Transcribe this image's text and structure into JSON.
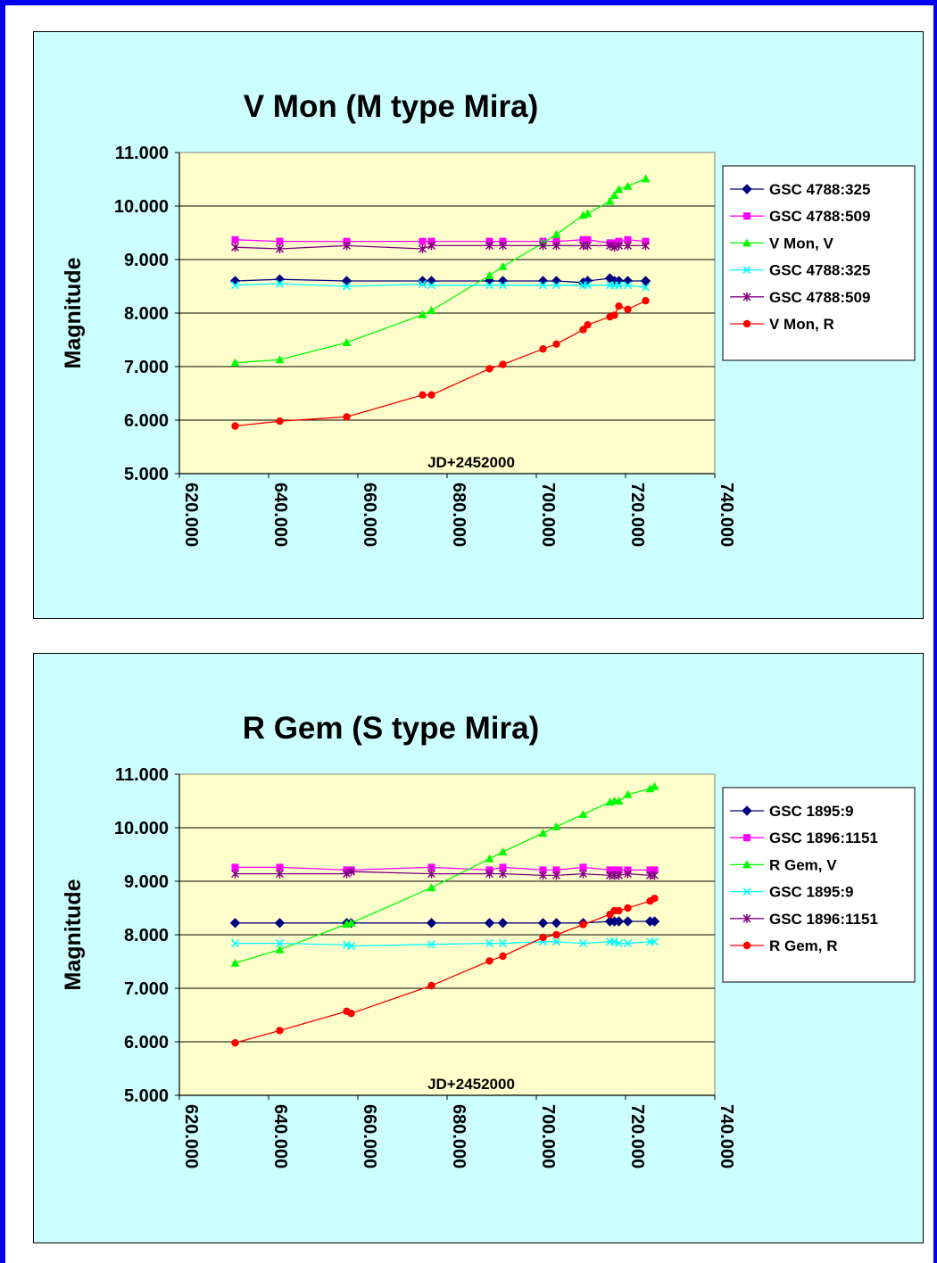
{
  "chart_data": [
    {
      "type": "line",
      "title": "V Mon (M type Mira)",
      "xlabel": "JD+2452000",
      "ylabel": "Magnitude",
      "xlim": [
        620,
        740
      ],
      "ylim": [
        5,
        11
      ],
      "x_ticks": [
        "620.000",
        "640.000",
        "660.000",
        "680.000",
        "700.000",
        "720.000",
        "740.000"
      ],
      "y_ticks": [
        "11.000",
        "10.000",
        "9.000",
        "8.000",
        "7.000",
        "6.000",
        "5.000"
      ],
      "grid": "horizontal",
      "legend": "right",
      "series": [
        {
          "name": "GSC 4788:325",
          "color": "#000080",
          "marker": "diamond",
          "x": [
            632.5,
            642.5,
            657.5,
            674.5,
            676.5,
            689.5,
            692.5,
            701.5,
            704.5,
            710.5,
            711.5,
            716.5,
            717.5,
            718.5,
            720.5,
            724.5
          ],
          "y": [
            8.6,
            8.63,
            8.6,
            8.6,
            8.6,
            8.6,
            8.6,
            8.6,
            8.6,
            8.57,
            8.6,
            8.65,
            8.6,
            8.6,
            8.6,
            8.6
          ]
        },
        {
          "name": "GSC 4788:509",
          "color": "#ff00ff",
          "marker": "square",
          "x": [
            632.5,
            642.5,
            657.5,
            674.5,
            676.5,
            689.5,
            692.5,
            701.5,
            704.5,
            710.5,
            711.5,
            716.5,
            717.5,
            718.5,
            720.5,
            724.5
          ],
          "y": [
            9.37,
            9.34,
            9.34,
            9.34,
            9.34,
            9.34,
            9.34,
            9.34,
            9.34,
            9.37,
            9.37,
            9.31,
            9.31,
            9.34,
            9.37,
            9.34
          ]
        },
        {
          "name": "V Mon, V",
          "color": "#00ff00",
          "marker": "triangle",
          "x": [
            632.5,
            642.5,
            657.5,
            674.5,
            676.5,
            689.5,
            692.5,
            701.5,
            704.5,
            710.5,
            711.5,
            716.5,
            717.5,
            718.5,
            720.5,
            724.5
          ],
          "y": [
            7.07,
            7.13,
            7.45,
            7.97,
            8.05,
            8.7,
            8.87,
            9.31,
            9.47,
            9.83,
            9.86,
            10.09,
            10.2,
            10.31,
            10.37,
            10.51
          ]
        },
        {
          "name": "GSC 4788:325",
          "color": "#00ffff",
          "marker": "x",
          "x": [
            632.5,
            642.5,
            657.5,
            674.5,
            676.5,
            689.5,
            692.5,
            701.5,
            704.5,
            710.5,
            711.5,
            716.5,
            717.5,
            718.5,
            720.5,
            724.5
          ],
          "y": [
            8.52,
            8.55,
            8.5,
            8.54,
            8.52,
            8.52,
            8.52,
            8.52,
            8.52,
            8.52,
            8.52,
            8.52,
            8.52,
            8.52,
            8.52,
            8.48
          ]
        },
        {
          "name": "GSC 4788:509",
          "color": "#800080",
          "marker": "star",
          "x": [
            632.5,
            642.5,
            657.5,
            674.5,
            676.5,
            689.5,
            692.5,
            701.5,
            704.5,
            710.5,
            711.5,
            716.5,
            717.5,
            718.5,
            720.5,
            724.5
          ],
          "y": [
            9.23,
            9.2,
            9.26,
            9.2,
            9.26,
            9.26,
            9.26,
            9.26,
            9.26,
            9.26,
            9.26,
            9.26,
            9.23,
            9.26,
            9.26,
            9.26
          ]
        },
        {
          "name": "V Mon, R",
          "color": "#ff0000",
          "marker": "circle",
          "x": [
            632.5,
            642.5,
            657.5,
            674.5,
            676.5,
            689.5,
            692.5,
            701.5,
            704.5,
            710.5,
            711.5,
            716.5,
            717.5,
            718.5,
            720.5,
            724.5
          ],
          "y": [
            5.89,
            5.98,
            6.06,
            6.47,
            6.47,
            6.96,
            7.04,
            7.33,
            7.42,
            7.69,
            7.78,
            7.93,
            7.96,
            8.13,
            8.07,
            8.23
          ]
        }
      ]
    },
    {
      "type": "line",
      "title": "R Gem (S type Mira)",
      "xlabel": "JD+2452000",
      "ylabel": "Magnitude",
      "xlim": [
        620,
        740
      ],
      "ylim": [
        5,
        11
      ],
      "x_ticks": [
        "620.000",
        "640.000",
        "660.000",
        "680.000",
        "700.000",
        "720.000",
        "740.000"
      ],
      "y_ticks": [
        "11.000",
        "10.000",
        "9.000",
        "8.000",
        "7.000",
        "6.000",
        "5.000"
      ],
      "grid": "horizontal",
      "legend": "right",
      "series": [
        {
          "name": "GSC 1895:9",
          "color": "#000080",
          "marker": "diamond",
          "x": [
            632.5,
            642.5,
            657.5,
            658.5,
            676.5,
            689.5,
            692.5,
            701.5,
            704.5,
            710.5,
            716.5,
            717.5,
            718.5,
            720.5,
            725.5,
            726.5
          ],
          "y": [
            8.22,
            8.22,
            8.22,
            8.22,
            8.22,
            8.22,
            8.22,
            8.22,
            8.22,
            8.22,
            8.25,
            8.25,
            8.25,
            8.25,
            8.25,
            8.25
          ]
        },
        {
          "name": "GSC 1896:1151",
          "color": "#ff00ff",
          "marker": "square",
          "x": [
            632.5,
            642.5,
            657.5,
            658.5,
            676.5,
            689.5,
            692.5,
            701.5,
            704.5,
            710.5,
            716.5,
            717.5,
            718.5,
            720.5,
            725.5,
            726.5
          ],
          "y": [
            9.26,
            9.26,
            9.21,
            9.21,
            9.26,
            9.21,
            9.26,
            9.21,
            9.21,
            9.26,
            9.21,
            9.21,
            9.21,
            9.21,
            9.21,
            9.21
          ]
        },
        {
          "name": "R Gem, V",
          "color": "#00ff00",
          "marker": "triangle",
          "x": [
            632.5,
            642.5,
            657.5,
            658.5,
            676.5,
            689.5,
            692.5,
            701.5,
            704.5,
            710.5,
            716.5,
            717.5,
            718.5,
            720.5,
            725.5,
            726.5
          ],
          "y": [
            7.47,
            7.72,
            8.2,
            8.22,
            8.88,
            9.42,
            9.55,
            9.9,
            10.02,
            10.25,
            10.48,
            10.5,
            10.5,
            10.62,
            10.73,
            10.77
          ]
        },
        {
          "name": "GSC 1895:9",
          "color": "#00ffff",
          "marker": "x",
          "x": [
            632.5,
            642.5,
            657.5,
            658.5,
            676.5,
            689.5,
            692.5,
            701.5,
            704.5,
            710.5,
            716.5,
            717.5,
            718.5,
            720.5,
            725.5,
            726.5
          ],
          "y": [
            7.84,
            7.84,
            7.81,
            7.79,
            7.82,
            7.84,
            7.84,
            7.87,
            7.87,
            7.84,
            7.87,
            7.87,
            7.84,
            7.84,
            7.87,
            7.87
          ]
        },
        {
          "name": "GSC 1896:1151",
          "color": "#800080",
          "marker": "star",
          "x": [
            632.5,
            642.5,
            657.5,
            658.5,
            676.5,
            689.5,
            692.5,
            701.5,
            704.5,
            710.5,
            716.5,
            717.5,
            718.5,
            720.5,
            725.5,
            726.5
          ],
          "y": [
            9.14,
            9.14,
            9.14,
            9.18,
            9.14,
            9.14,
            9.14,
            9.11,
            9.11,
            9.14,
            9.11,
            9.11,
            9.11,
            9.14,
            9.11,
            9.11
          ]
        },
        {
          "name": "R Gem, R",
          "color": "#ff0000",
          "marker": "circle",
          "x": [
            632.5,
            642.5,
            657.5,
            658.5,
            676.5,
            689.5,
            692.5,
            701.5,
            704.5,
            710.5,
            716.5,
            717.5,
            718.5,
            720.5,
            725.5,
            726.5
          ],
          "y": [
            5.98,
            6.21,
            6.57,
            6.53,
            7.05,
            7.51,
            7.6,
            7.95,
            8.0,
            8.19,
            8.38,
            8.45,
            8.45,
            8.5,
            8.63,
            8.68
          ]
        }
      ]
    }
  ]
}
